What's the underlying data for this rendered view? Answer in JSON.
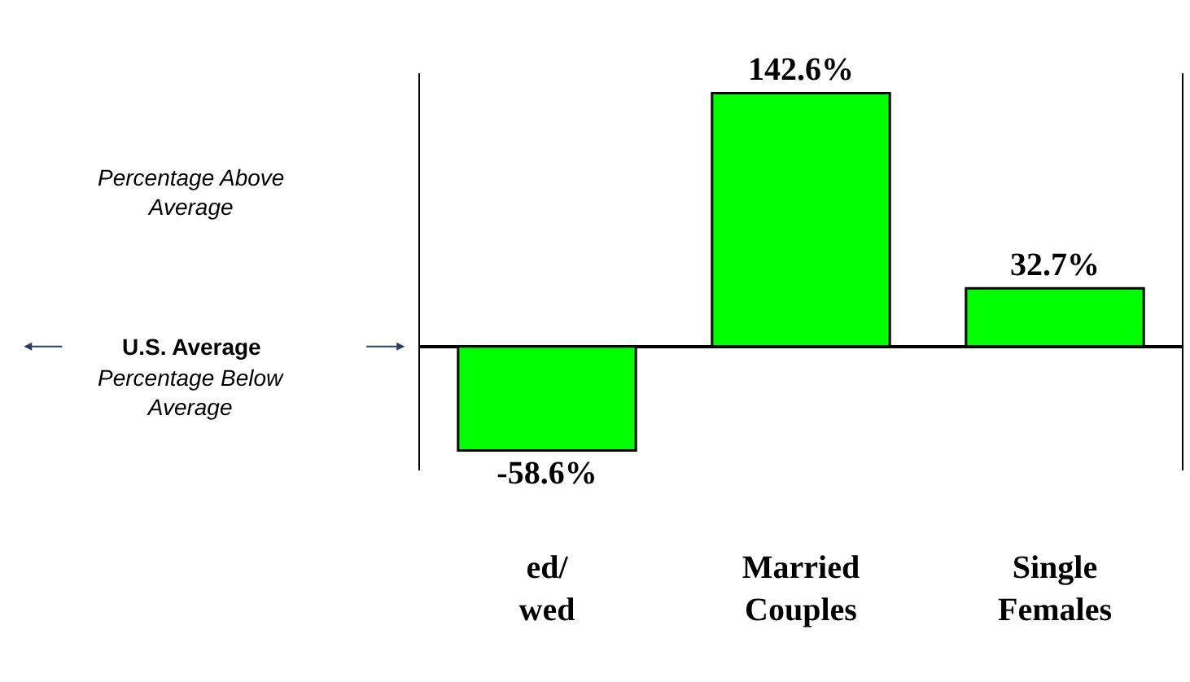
{
  "chart_data": {
    "type": "bar",
    "categories": [
      "ed/\nwed",
      "Married\nCouples",
      "Single\nFemales"
    ],
    "values": [
      -58.6,
      142.6,
      32.7
    ],
    "value_labels": [
      "-58.6%",
      "142.6%",
      "32.7%"
    ],
    "color": "#00ff00",
    "annotations": [
      "Percentage Above\nAverage",
      "U.S. Average",
      "Percentage Below\nAverage"
    ]
  }
}
